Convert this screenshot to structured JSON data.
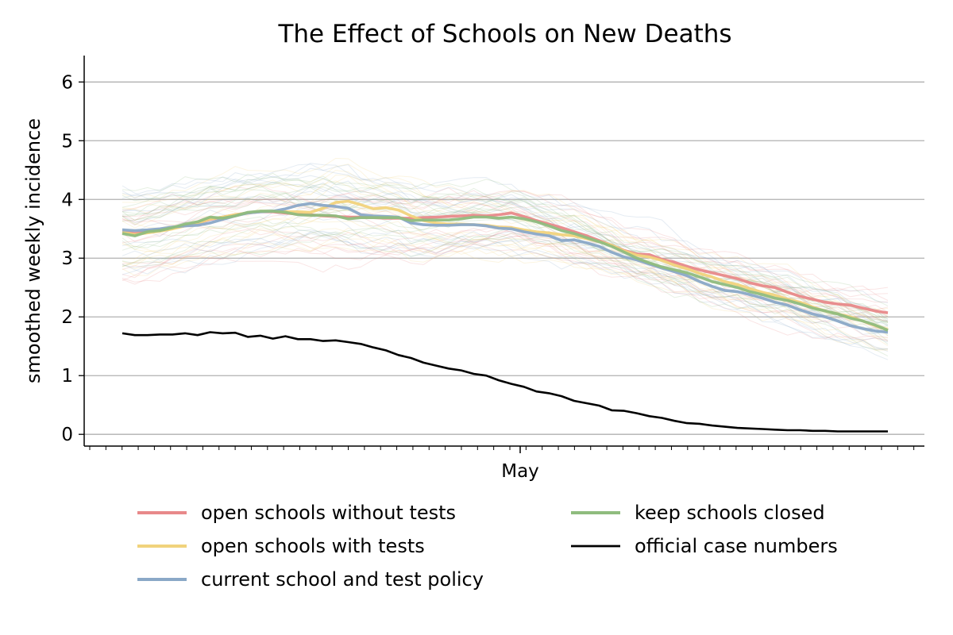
{
  "chart_data": {
    "type": "line",
    "title": "The Effect of Schools on New Deaths",
    "xlabel": "",
    "ylabel": "smoothed weekly incidence",
    "x_tick_label": "May",
    "ylim": [
      -0.2,
      6.45
    ],
    "yticks": [
      0,
      1,
      2,
      3,
      4,
      5,
      6
    ],
    "grid": "horizontal",
    "legend_placement": "bottom-center",
    "background_runs": "faint individual simulation runs per scenario",
    "series": [
      {
        "name": "open schools without tests",
        "color": "#e8898a",
        "values": [
          3.45,
          3.42,
          3.45,
          3.48,
          3.52,
          3.55,
          3.6,
          3.66,
          3.7,
          3.74,
          3.77,
          3.79,
          3.79,
          3.77,
          3.75,
          3.74,
          3.72,
          3.71,
          3.7,
          3.7,
          3.69,
          3.68,
          3.68,
          3.68,
          3.69,
          3.7,
          3.71,
          3.72,
          3.73,
          3.72,
          3.74,
          3.77,
          3.71,
          3.64,
          3.58,
          3.52,
          3.45,
          3.38,
          3.3,
          3.22,
          3.13,
          3.07,
          3.06,
          2.98,
          2.93,
          2.86,
          2.8,
          2.75,
          2.7,
          2.65,
          2.58,
          2.53,
          2.5,
          2.42,
          2.35,
          2.3,
          2.25,
          2.22,
          2.2,
          2.15,
          2.1,
          2.07
        ]
      },
      {
        "name": "open schools with tests",
        "color": "#f1d37c",
        "values": [
          3.44,
          3.4,
          3.43,
          3.46,
          3.5,
          3.55,
          3.6,
          3.67,
          3.7,
          3.74,
          3.77,
          3.8,
          3.8,
          3.79,
          3.79,
          3.78,
          3.85,
          3.95,
          3.97,
          3.91,
          3.84,
          3.86,
          3.82,
          3.72,
          3.64,
          3.6,
          3.58,
          3.58,
          3.57,
          3.56,
          3.53,
          3.52,
          3.48,
          3.45,
          3.43,
          3.4,
          3.38,
          3.33,
          3.28,
          3.22,
          3.12,
          3.05,
          3.02,
          2.96,
          2.88,
          2.82,
          2.74,
          2.68,
          2.6,
          2.55,
          2.48,
          2.42,
          2.37,
          2.3,
          2.25,
          2.17,
          2.1,
          2.05,
          2.0,
          1.93,
          1.85,
          1.78
        ]
      },
      {
        "name": "current school and test policy",
        "color": "#8aa8c7",
        "values": [
          3.48,
          3.47,
          3.48,
          3.5,
          3.53,
          3.55,
          3.56,
          3.6,
          3.66,
          3.72,
          3.77,
          3.79,
          3.8,
          3.84,
          3.9,
          3.93,
          3.9,
          3.88,
          3.85,
          3.74,
          3.72,
          3.71,
          3.7,
          3.6,
          3.57,
          3.56,
          3.56,
          3.57,
          3.57,
          3.55,
          3.51,
          3.5,
          3.45,
          3.41,
          3.38,
          3.3,
          3.31,
          3.26,
          3.2,
          3.1,
          3.02,
          2.97,
          2.9,
          2.83,
          2.77,
          2.7,
          2.6,
          2.52,
          2.45,
          2.43,
          2.38,
          2.32,
          2.25,
          2.2,
          2.12,
          2.05,
          2.0,
          1.93,
          1.85,
          1.8,
          1.76,
          1.74
        ]
      },
      {
        "name": "keep schools closed",
        "color": "#8fbc7e",
        "values": [
          3.42,
          3.38,
          3.45,
          3.47,
          3.52,
          3.58,
          3.62,
          3.7,
          3.68,
          3.72,
          3.78,
          3.8,
          3.8,
          3.78,
          3.74,
          3.73,
          3.73,
          3.72,
          3.67,
          3.69,
          3.69,
          3.69,
          3.69,
          3.64,
          3.65,
          3.65,
          3.65,
          3.67,
          3.7,
          3.7,
          3.68,
          3.7,
          3.67,
          3.62,
          3.55,
          3.47,
          3.42,
          3.35,
          3.28,
          3.2,
          3.1,
          3.0,
          2.92,
          2.85,
          2.8,
          2.75,
          2.68,
          2.6,
          2.55,
          2.5,
          2.43,
          2.38,
          2.32,
          2.28,
          2.22,
          2.15,
          2.1,
          2.05,
          1.98,
          1.93,
          1.86,
          1.77
        ]
      },
      {
        "name": "official case numbers",
        "color": "#000000",
        "values": [
          1.72,
          1.69,
          1.69,
          1.7,
          1.7,
          1.72,
          1.69,
          1.74,
          1.72,
          1.73,
          1.66,
          1.68,
          1.63,
          1.67,
          1.62,
          1.62,
          1.59,
          1.6,
          1.57,
          1.54,
          1.48,
          1.43,
          1.35,
          1.3,
          1.22,
          1.17,
          1.12,
          1.09,
          1.03,
          1.0,
          0.92,
          0.86,
          0.81,
          0.73,
          0.7,
          0.65,
          0.57,
          0.53,
          0.49,
          0.41,
          0.4,
          0.36,
          0.31,
          0.28,
          0.23,
          0.19,
          0.18,
          0.15,
          0.13,
          0.11,
          0.1,
          0.09,
          0.08,
          0.07,
          0.07,
          0.06,
          0.06,
          0.05,
          0.05,
          0.05,
          0.05,
          0.05
        ]
      }
    ]
  }
}
